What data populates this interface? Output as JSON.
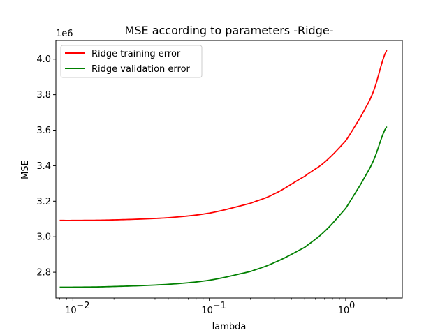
{
  "chart_data": {
    "type": "line",
    "title": "MSE according to parameters -Ridge-",
    "xlabel": "lambda",
    "ylabel": "MSE",
    "y_offset_label": "1e6",
    "x_scale": "log",
    "xlim": [
      0.0075,
      2.6
    ],
    "ylim": [
      2.655,
      4.105
    ],
    "y_ticks": [
      2.8,
      3.0,
      3.2,
      3.4,
      3.6,
      3.8,
      4.0
    ],
    "y_tick_labels": [
      "2.8",
      "3.0",
      "3.2",
      "3.4",
      "3.6",
      "3.8",
      "4.0"
    ],
    "x_major_ticks": [
      0.01,
      0.1,
      1
    ],
    "x_tick_labels": [
      "10",
      "10",
      "10"
    ],
    "x_tick_exponents": [
      "−2",
      "−1",
      "0"
    ],
    "grid": false,
    "legend_position": "top-left",
    "series": [
      {
        "name": "Ridge training error",
        "color": "#ff0000",
        "x": [
          0.008,
          0.01,
          0.02,
          0.05,
          0.1,
          0.2,
          0.3,
          0.5,
          0.7,
          1.0,
          1.3,
          1.6,
          2.0
        ],
        "y": [
          3.092,
          3.092,
          3.095,
          3.107,
          3.133,
          3.188,
          3.242,
          3.34,
          3.42,
          3.54,
          3.68,
          3.82,
          4.05
        ]
      },
      {
        "name": "Ridge validation error",
        "color": "#008000",
        "x": [
          0.008,
          0.01,
          0.02,
          0.05,
          0.1,
          0.2,
          0.3,
          0.5,
          0.7,
          1.0,
          1.3,
          1.6,
          2.0
        ],
        "y": [
          2.716,
          2.716,
          2.72,
          2.732,
          2.755,
          2.804,
          2.855,
          2.94,
          3.03,
          3.16,
          3.3,
          3.43,
          3.62
        ]
      }
    ]
  }
}
